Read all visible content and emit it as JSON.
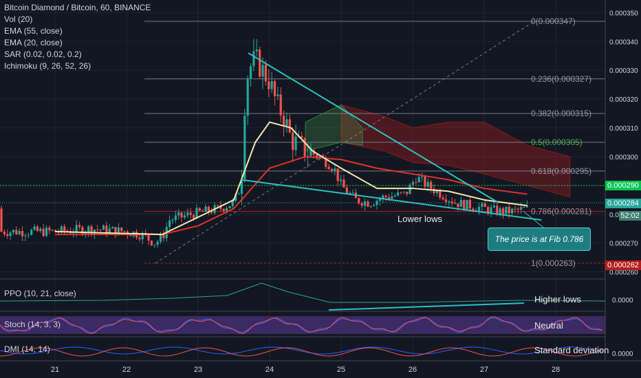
{
  "header": {
    "title": "Bitcoin Diamond / Bitcoin, 60, BINANCE",
    "indicators": [
      "Vol (20)",
      "EMA (55, close)",
      "EMA (20, close)",
      "SAR (0.02, 0.02, 0.2)",
      "Ichimoku (9, 26, 52, 26)"
    ]
  },
  "annotations": {
    "lower_lows": "Lower lows",
    "callout": "The price is at Fib 0.786",
    "higher_lows": "Higher lows",
    "neutral": "Neutral",
    "std_dev": "Standard deviation"
  },
  "panes": {
    "ppo": {
      "label": "PPO (10, 21, close)",
      "axis_value": "0.0000"
    },
    "stoch": {
      "label": "Stoch (14, 3, 3)"
    },
    "dmi": {
      "label": "DMI (14, 14)",
      "axis_value": "0.0000"
    }
  },
  "price_tags": {
    "current": "0.000290",
    "last": "0.000284",
    "partial": "52:02",
    "low": "0.000262"
  },
  "colors": {
    "background": "#131722",
    "up_candle": "#26a69a",
    "down_candle": "#ef5350",
    "trendline": "#2fc1c0",
    "ema20": "#f3e9b0",
    "ema55": "#e0322a",
    "stoch_band": "#3b2a63"
  },
  "chart_data": {
    "type": "candlestick",
    "x_axis": {
      "labels": [
        "21",
        "22",
        "23",
        "24",
        "25",
        "26",
        "27",
        "28"
      ]
    },
    "y_axis": {
      "range": [
        0.000258,
        0.000352
      ],
      "ticks": [
        "0.000350",
        "0.000340",
        "0.000330",
        "0.000320",
        "0.000310",
        "0.000300",
        "0.000290",
        "0.000280",
        "0.000270",
        "0.000260"
      ]
    },
    "fibonacci": [
      {
        "label": "0(0.000347)",
        "level": 0.000347
      },
      {
        "label": "0.236(0.000327)",
        "level": 0.000327
      },
      {
        "label": "0.382(0.000315)",
        "level": 0.000315
      },
      {
        "label": "0.5(0.000305)",
        "level": 0.000305
      },
      {
        "label": "0.618(0.000295)",
        "level": 0.000295
      },
      {
        "label": "0.786(0.000281)",
        "level": 0.000281
      },
      {
        "label": "1(0.000263)",
        "level": 0.000263
      }
    ],
    "price_path": [
      [
        0,
        0.000274
      ],
      [
        0.5,
        0.000275
      ],
      [
        1,
        0.000274
      ],
      [
        1.2,
        0.000273
      ],
      [
        1.4,
        0.00027
      ],
      [
        1.5,
        0.000272
      ],
      [
        1.6,
        0.000278
      ],
      [
        1.9,
        0.00028
      ],
      [
        2.3,
        0.000282
      ],
      [
        2.5,
        0.000284
      ],
      [
        2.6,
        0.00029
      ],
      [
        2.65,
        0.000318
      ],
      [
        2.7,
        0.00033
      ],
      [
        2.8,
        0.000334
      ],
      [
        2.9,
        0.00033
      ],
      [
        3.0,
        0.000326
      ],
      [
        3.1,
        0.000318
      ],
      [
        3.2,
        0.000314
      ],
      [
        3.3,
        0.000306
      ],
      [
        3.5,
        0.000302
      ],
      [
        3.7,
        0.0003
      ],
      [
        3.9,
        0.000296
      ],
      [
        4.0,
        0.00029
      ],
      [
        4.2,
        0.000285
      ],
      [
        4.4,
        0.000284
      ],
      [
        4.6,
        0.000286
      ],
      [
        4.9,
        0.000287
      ],
      [
        5.05,
        0.000293
      ],
      [
        5.2,
        0.00029
      ],
      [
        5.4,
        0.000287
      ],
      [
        5.6,
        0.000284
      ],
      [
        5.8,
        0.000283
      ],
      [
        6.0,
        0.000282
      ],
      [
        6.2,
        0.000281
      ],
      [
        6.4,
        0.000281
      ],
      [
        6.6,
        0.000282
      ]
    ],
    "ema20": [
      [
        0,
        0.000274
      ],
      [
        1.5,
        0.000273
      ],
      [
        2.0,
        0.000279
      ],
      [
        2.5,
        0.000285
      ],
      [
        2.8,
        0.000305
      ],
      [
        3.0,
        0.000312
      ],
      [
        3.3,
        0.00031
      ],
      [
        3.6,
        0.000302
      ],
      [
        4.0,
        0.000296
      ],
      [
        4.5,
        0.000289
      ],
      [
        5.0,
        0.000289
      ],
      [
        5.5,
        0.000288
      ],
      [
        6.0,
        0.000285
      ],
      [
        6.6,
        0.000283
      ]
    ],
    "ema55": [
      [
        0,
        0.000273
      ],
      [
        1.5,
        0.000273
      ],
      [
        2.0,
        0.000276
      ],
      [
        2.5,
        0.000282
      ],
      [
        3.0,
        0.000296
      ],
      [
        3.5,
        0.0003
      ],
      [
        4.0,
        0.000299
      ],
      [
        4.5,
        0.000296
      ],
      [
        5.0,
        0.000294
      ],
      [
        5.5,
        0.000292
      ],
      [
        6.0,
        0.000289
      ],
      [
        6.6,
        0.000287
      ]
    ],
    "trendlines": [
      {
        "from": [
          2.7,
          0.000336
        ],
        "to": [
          6.2,
          0.000284
        ]
      },
      {
        "from": [
          2.6,
          0.000292
        ],
        "to": [
          6.8,
          0.000278
        ]
      }
    ]
  }
}
